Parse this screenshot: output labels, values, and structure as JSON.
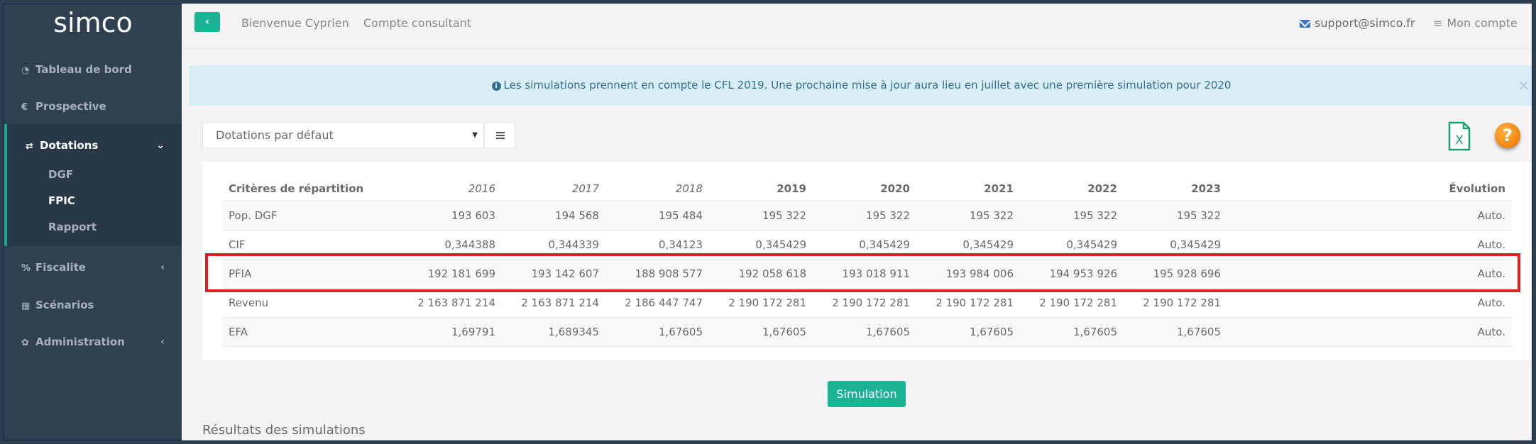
{
  "app": {
    "logo": "simco"
  },
  "sidebar": {
    "items": [
      {
        "icon": "dashboard-icon",
        "glyph": "◔",
        "label": "Tableau de bord"
      },
      {
        "icon": "euro-icon",
        "glyph": "€",
        "label": "Prospective"
      },
      {
        "icon": "exchange-icon",
        "glyph": "⇄",
        "label": "Dotations",
        "expanded": true
      },
      {
        "icon": "percent-icon",
        "glyph": "%",
        "label": "Fiscalite"
      },
      {
        "icon": "grid-icon",
        "glyph": "▦",
        "label": "Scénarios"
      },
      {
        "icon": "gear-icon",
        "glyph": "✿",
        "label": "Administration"
      }
    ],
    "subitems": [
      {
        "label": "DGF"
      },
      {
        "label": "FPIC",
        "current": true
      },
      {
        "label": "Rapport"
      }
    ],
    "arrows": {
      "down": "⌄",
      "left": "‹"
    }
  },
  "topbar": {
    "back_glyph": "‹",
    "welcome": "Bienvenue Cyprien",
    "account_type": "Compte consultant",
    "support_email": "support@simco.fr",
    "account_menu": "Mon compte",
    "account_glyph": "≡"
  },
  "alert": {
    "info_glyph": "i",
    "message": "Les simulations prennent en compte le CFL 2019. Une prochaine mise à jour aura lieu en juillet avec une première simulation pour 2020",
    "close_glyph": "×"
  },
  "controls": {
    "select_value": "Dotations par défaut",
    "select_caret": "▼",
    "excel_letter": "X",
    "help_glyph": "?"
  },
  "table": {
    "headers": [
      "Critères de répartition",
      "2016",
      "2017",
      "2018",
      "2019",
      "2020",
      "2021",
      "2022",
      "2023",
      "Évolution"
    ],
    "rows": [
      [
        "Pop. DGF",
        "193 603",
        "194 568",
        "195 484",
        "195 322",
        "195 322",
        "195 322",
        "195 322",
        "195 322",
        "Auto."
      ],
      [
        "CIF",
        "0,344388",
        "0,344339",
        "0,34123",
        "0,345429",
        "0,345429",
        "0,345429",
        "0,345429",
        "0,345429",
        "Auto."
      ],
      [
        "PFIA",
        "192 181 699",
        "193 142 607",
        "188 908 577",
        "192 058 618",
        "193 018 911",
        "193 984 006",
        "194 953 926",
        "195 928 696",
        "Auto."
      ],
      [
        "Revenu",
        "2 163 871 214",
        "2 163 871 214",
        "2 186 447 747",
        "2 190 172 281",
        "2 190 172 281",
        "2 190 172 281",
        "2 190 172 281",
        "2 190 172 281",
        "Auto."
      ],
      [
        "EFA",
        "1,69791",
        "1,689345",
        "1,67605",
        "1,67605",
        "1,67605",
        "1,67605",
        "1,67605",
        "1,67605",
        "Auto."
      ]
    ],
    "highlighted_row": "PFIA"
  },
  "footer": {
    "simulate_label": "Simulation",
    "results_title": "Résultats des simulations"
  },
  "colors": {
    "accent": "#1ab394",
    "sidebar": "#2f4050",
    "highlight": "#e02020"
  }
}
